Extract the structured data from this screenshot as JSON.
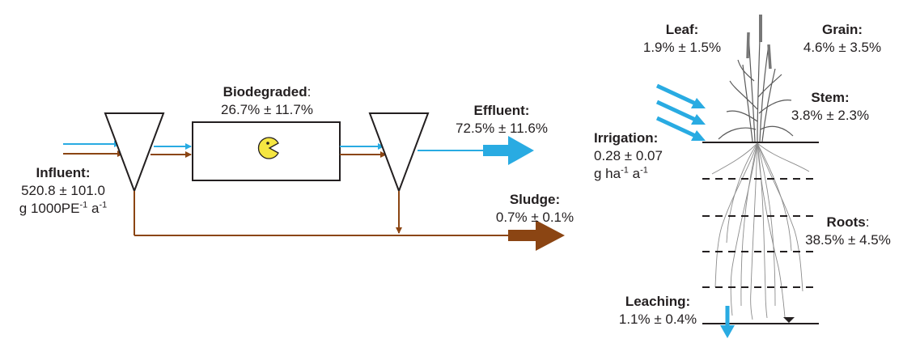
{
  "influent": {
    "title": "Influent:",
    "value": "520.8 ± 101.0",
    "unit_main": "g 1000PE",
    "unit_sup1": "-1",
    "unit_mid": " a",
    "unit_sup2": "-1"
  },
  "biodegraded": {
    "title": "Biodegraded",
    "colon": ":",
    "value": "26.7% ± 11.7%"
  },
  "effluent": {
    "title": "Effluent:",
    "value": "72.5% ± 11.6%"
  },
  "sludge": {
    "title": "Sludge:",
    "value": "0.7% ± 0.1%"
  },
  "irrigation": {
    "title": "Irrigation:",
    "value": "0.28 ± 0.07",
    "unit_main": "g ha",
    "unit_sup1": "-1",
    "unit_mid": " a",
    "unit_sup2": "-1"
  },
  "leaf": {
    "title": "Leaf:",
    "value": "1.9% ± 1.5%"
  },
  "grain": {
    "title": "Grain:",
    "value": "4.6% ± 3.5%"
  },
  "stem": {
    "title": "Stem:",
    "value": "3.8% ± 2.3%"
  },
  "roots": {
    "title": "Roots",
    "colon": ":",
    "value": "38.5% ± 4.5%"
  },
  "leaching": {
    "title": "Leaching:",
    "value": "1.1% ± 0.4%"
  },
  "colors": {
    "water": "#29abe2",
    "solids": "#8b4513",
    "line": "#231f20",
    "pacman": "#f5e642"
  },
  "icons": {
    "biodegradation": "pacman-icon",
    "plant": "wheat-plant-icon"
  }
}
